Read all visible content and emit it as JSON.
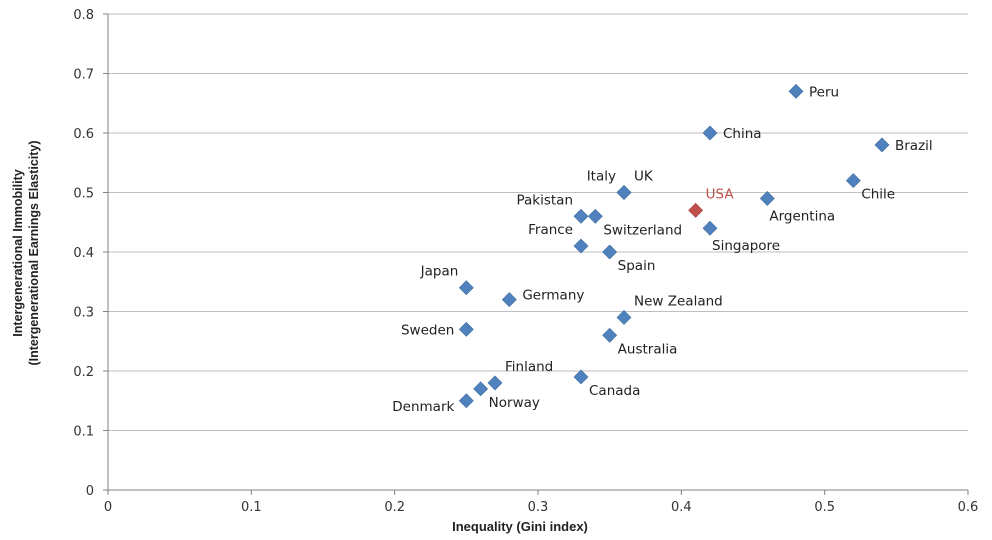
{
  "chart_data": {
    "type": "scatter",
    "title": "",
    "xlabel": "Inequality (Gini index)",
    "ylabel_line1": "Intergenerational Immobility",
    "ylabel_line2": "(Intergenerational Earnings Elasticity)",
    "xlim": [
      0,
      0.6
    ],
    "ylim": [
      0,
      0.8
    ],
    "x_ticks": [
      "0",
      "0.1",
      "0.2",
      "0.3",
      "0.4",
      "0.5",
      "0.6"
    ],
    "y_ticks": [
      "0",
      "0.1",
      "0.2",
      "0.3",
      "0.4",
      "0.5",
      "0.6",
      "0.7",
      "0.8"
    ],
    "x_tick_values": [
      0,
      0.1,
      0.2,
      0.3,
      0.4,
      0.5,
      0.6
    ],
    "y_tick_values": [
      0,
      0.1,
      0.2,
      0.3,
      0.4,
      0.5,
      0.6,
      0.7,
      0.8
    ],
    "grid": "horizontal",
    "marker_color": "#4F81BD",
    "highlight_color": "#C0504D",
    "points": [
      {
        "label": "Peru",
        "x": 0.48,
        "y": 0.67,
        "label_pos": "right"
      },
      {
        "label": "China",
        "x": 0.42,
        "y": 0.6,
        "label_pos": "right"
      },
      {
        "label": "Brazil",
        "x": 0.54,
        "y": 0.58,
        "label_pos": "right"
      },
      {
        "label": "Chile",
        "x": 0.52,
        "y": 0.52,
        "label_pos": "below-right"
      },
      {
        "label": "Argentina",
        "x": 0.46,
        "y": 0.49,
        "label_pos": "below"
      },
      {
        "label": "USA",
        "x": 0.41,
        "y": 0.47,
        "label_pos": "above-right",
        "highlight": true
      },
      {
        "label": "UK",
        "x": 0.36,
        "y": 0.5,
        "label_pos": "above-right"
      },
      {
        "label": "Italy",
        "x": 0.36,
        "y": 0.5,
        "label_pos": "above-left"
      },
      {
        "label": "Pakistan",
        "x": 0.33,
        "y": 0.46,
        "label_pos": "above-left"
      },
      {
        "label": "Switzerland",
        "x": 0.34,
        "y": 0.46,
        "label_pos": "below-right"
      },
      {
        "label": "Singapore",
        "x": 0.42,
        "y": 0.44,
        "label_pos": "below"
      },
      {
        "label": "France",
        "x": 0.33,
        "y": 0.41,
        "label_pos": "above-left"
      },
      {
        "label": "Spain",
        "x": 0.35,
        "y": 0.4,
        "label_pos": "below-right"
      },
      {
        "label": "Japan",
        "x": 0.25,
        "y": 0.34,
        "label_pos": "above-left"
      },
      {
        "label": "Germany",
        "x": 0.28,
        "y": 0.32,
        "label_pos": "right-up"
      },
      {
        "label": "New Zealand",
        "x": 0.36,
        "y": 0.29,
        "label_pos": "above-right"
      },
      {
        "label": "Sweden",
        "x": 0.25,
        "y": 0.27,
        "label_pos": "left"
      },
      {
        "label": "Australia",
        "x": 0.35,
        "y": 0.26,
        "label_pos": "below-right"
      },
      {
        "label": "Canada",
        "x": 0.33,
        "y": 0.19,
        "label_pos": "below-right"
      },
      {
        "label": "Finland",
        "x": 0.27,
        "y": 0.18,
        "label_pos": "above-right"
      },
      {
        "label": "Norway",
        "x": 0.26,
        "y": 0.17,
        "label_pos": "below-right"
      },
      {
        "label": "Denmark",
        "x": 0.25,
        "y": 0.15,
        "label_pos": "below-left"
      }
    ]
  }
}
